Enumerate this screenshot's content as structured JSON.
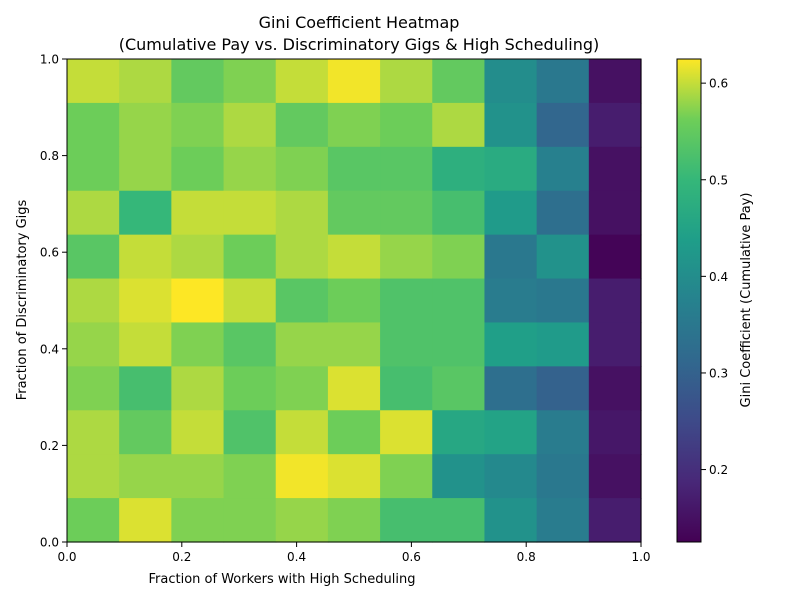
{
  "chart_data": {
    "type": "heatmap",
    "title": "Gini Coefficient Heatmap",
    "subtitle": "(Cumulative Pay vs. Discriminatory Gigs & High Scheduling)",
    "xlabel": "Fraction of Workers with High Scheduling",
    "ylabel": "Fraction of Discriminatory Gigs",
    "xlim": [
      0.0,
      1.0
    ],
    "ylim": [
      0.0,
      1.0
    ],
    "x_ticks": [
      "0.0",
      "0.2",
      "0.4",
      "0.6",
      "0.8",
      "1.0"
    ],
    "y_ticks": [
      "0.0",
      "0.2",
      "0.4",
      "0.6",
      "0.8",
      "1.0"
    ],
    "colorbar": {
      "label": "Gini Coefficient (Cumulative Pay)",
      "colormap": "viridis",
      "vmin": 0.125,
      "vmax": 0.625,
      "ticks": [
        "0.2",
        "0.3",
        "0.4",
        "0.5",
        "0.6"
      ]
    },
    "grid": false,
    "rows": 11,
    "cols": 11,
    "values_top_to_bottom": [
      [
        0.6,
        0.59,
        0.55,
        0.57,
        0.6,
        0.62,
        0.59,
        0.55,
        0.4,
        0.35,
        0.15
      ],
      [
        0.56,
        0.58,
        0.57,
        0.59,
        0.55,
        0.57,
        0.56,
        0.59,
        0.41,
        0.31,
        0.17
      ],
      [
        0.56,
        0.58,
        0.56,
        0.58,
        0.57,
        0.54,
        0.54,
        0.48,
        0.47,
        0.37,
        0.15
      ],
      [
        0.59,
        0.5,
        0.6,
        0.6,
        0.59,
        0.55,
        0.55,
        0.52,
        0.43,
        0.33,
        0.15
      ],
      [
        0.54,
        0.6,
        0.59,
        0.56,
        0.59,
        0.6,
        0.58,
        0.57,
        0.35,
        0.41,
        0.13
      ],
      [
        0.59,
        0.61,
        0.625,
        0.6,
        0.54,
        0.56,
        0.53,
        0.53,
        0.36,
        0.35,
        0.17
      ],
      [
        0.58,
        0.6,
        0.57,
        0.54,
        0.58,
        0.58,
        0.53,
        0.53,
        0.44,
        0.43,
        0.17
      ],
      [
        0.57,
        0.52,
        0.59,
        0.56,
        0.57,
        0.61,
        0.52,
        0.54,
        0.33,
        0.3,
        0.15
      ],
      [
        0.59,
        0.55,
        0.6,
        0.53,
        0.6,
        0.56,
        0.61,
        0.46,
        0.45,
        0.36,
        0.16
      ],
      [
        0.59,
        0.58,
        0.58,
        0.57,
        0.62,
        0.61,
        0.57,
        0.41,
        0.39,
        0.35,
        0.15
      ],
      [
        0.56,
        0.61,
        0.57,
        0.57,
        0.58,
        0.57,
        0.52,
        0.52,
        0.41,
        0.36,
        0.17
      ]
    ]
  }
}
